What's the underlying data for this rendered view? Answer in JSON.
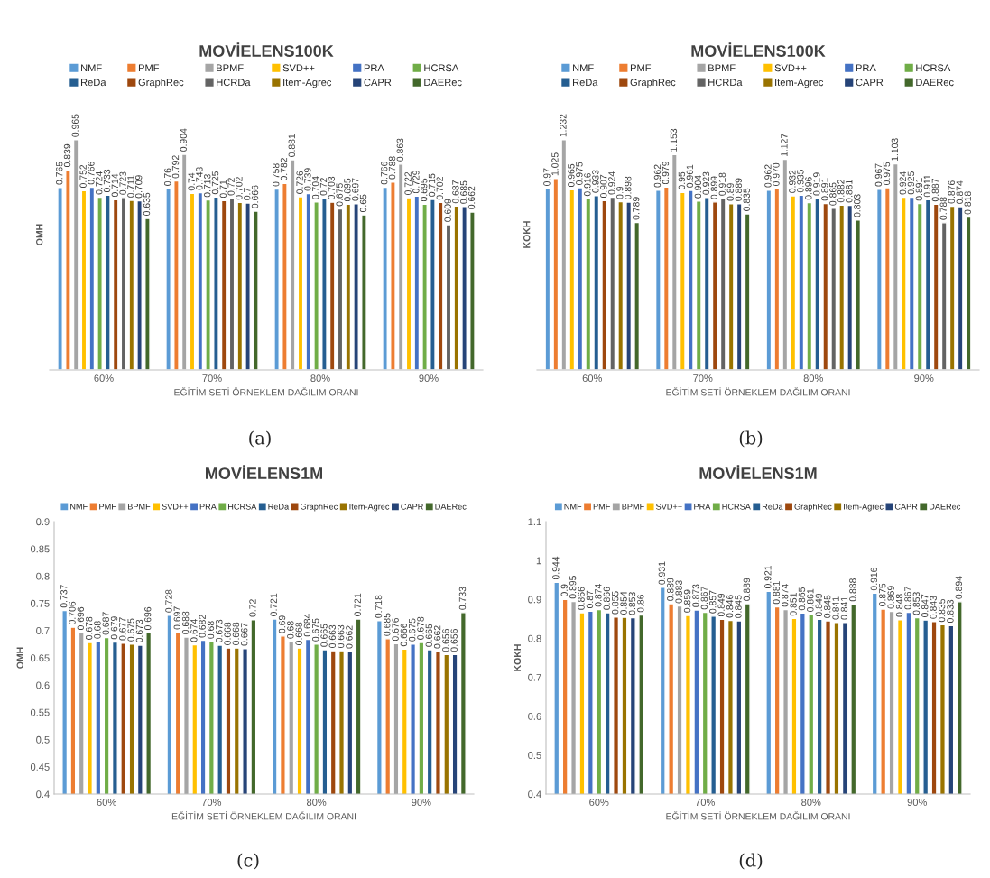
{
  "chart_data": [
    {
      "type": "bar",
      "title": "MOVİELENS100K",
      "xlabel": "EĞİTİM SETİ ÖRNEKLEM DAĞILIM ORANI",
      "ylabel": "OMH",
      "categories": [
        "60%",
        "70%",
        "80%",
        "90%"
      ],
      "legend": "top",
      "tick_labels": "x",
      "data_labels": true,
      "annotations": [
        "(a)"
      ],
      "series": [
        {
          "name": "NMF",
          "color": "#5b9bd5",
          "values": [
            0.765,
            0.76,
            0.758,
            0.766
          ]
        },
        {
          "name": "PMF",
          "color": "#ed7d31",
          "values": [
            0.839,
            0.792,
            0.782,
            0.788
          ]
        },
        {
          "name": "BPMF",
          "color": "#a5a5a5",
          "values": [
            0.965,
            0.904,
            0.881,
            0.863
          ]
        },
        {
          "name": "SVD++",
          "color": "#ffc000",
          "values": [
            0.752,
            0.74,
            0.726,
            0.722
          ]
        },
        {
          "name": "PRA",
          "color": "#4472c4",
          "values": [
            0.766,
            0.743,
            0.739,
            0.729
          ]
        },
        {
          "name": "HCRSA",
          "color": "#70ad47",
          "values": [
            0.724,
            0.713,
            0.704,
            0.695
          ]
        },
        {
          "name": "ReDa",
          "color": "#255e91",
          "values": [
            0.733,
            0.725,
            0.72,
            0.715
          ]
        },
        {
          "name": "GraphRec",
          "color": "#9e480e",
          "values": [
            0.714,
            0.71,
            0.703,
            0.702
          ]
        },
        {
          "name": "HCRDa",
          "color": "#636363",
          "values": [
            0.723,
            0.72,
            0.675,
            0.609
          ]
        },
        {
          "name": "Item-Agrec",
          "color": "#997300",
          "values": [
            0.711,
            0.702,
            0.695,
            0.687
          ]
        },
        {
          "name": "CAPR",
          "color": "#264478",
          "values": [
            0.709,
            0.7,
            0.697,
            0.685
          ]
        },
        {
          "name": "DAERec",
          "color": "#43682b",
          "values": [
            0.635,
            0.666,
            0.65,
            0.662
          ]
        }
      ]
    },
    {
      "type": "bar",
      "title": "MOVİELENS100K",
      "xlabel": "EĞİTİM SETİ ÖRNEKLEM DAĞILIM ORANI",
      "ylabel": "KOKH",
      "categories": [
        "60%",
        "70%",
        "80%",
        "90%"
      ],
      "legend": "top",
      "tick_labels": "x",
      "annotations": [
        "(b)"
      ],
      "series": [
        {
          "name": "NMF",
          "color": "#5b9bd5",
          "values": [
            0.97,
            0.962,
            0.962,
            0.967
          ],
          "value_labels": [
            "0.97",
            "0.962",
            "0.962",
            "0.967"
          ]
        },
        {
          "name": "PMF",
          "color": "#ed7d31",
          "values": [
            1.025,
            0.979,
            0.97,
            0.975
          ],
          "value_labels": [
            "1.025",
            "0.979",
            "0.970",
            "0.975"
          ]
        },
        {
          "name": "BPMF",
          "color": "#a5a5a5",
          "values": [
            1.232,
            1.153,
            1.127,
            1.103
          ],
          "value_labels": [
            "1.232",
            "1.153",
            "1.127",
            "1.103"
          ]
        },
        {
          "name": "SVD++",
          "color": "#ffc000",
          "values": [
            0.965,
            0.95,
            0.932,
            0.924
          ],
          "value_labels": [
            "0.965",
            "0.95",
            "0.932",
            "0.924"
          ]
        },
        {
          "name": "PRA",
          "color": "#4472c4",
          "values": [
            0.975,
            0.961,
            0.935,
            0.925
          ],
          "value_labels": [
            "0.975",
            "0.961",
            "0.935",
            "0.925"
          ]
        },
        {
          "name": "HCRSA",
          "color": "#70ad47",
          "values": [
            0.916,
            0.904,
            0.896,
            0.891
          ],
          "value_labels": [
            "0.916",
            "0.904",
            "0.896",
            "0.891"
          ]
        },
        {
          "name": "ReDa",
          "color": "#255e91",
          "values": [
            0.933,
            0.923,
            0.919,
            0.911
          ],
          "value_labels": [
            "0.933",
            "0.923",
            "0.919",
            "0.911"
          ]
        },
        {
          "name": "GraphRec",
          "color": "#9e480e",
          "values": [
            0.907,
            0.899,
            0.891,
            0.887
          ],
          "value_labels": [
            "0.907",
            "0.899",
            "0.891",
            "0.887"
          ]
        },
        {
          "name": "HCRDa",
          "color": "#636363",
          "values": [
            0.924,
            0.918,
            0.865,
            0.788
          ],
          "value_labels": [
            "0.924",
            "0.918",
            "0.865",
            "0.788"
          ]
        },
        {
          "name": "Item-Agrec",
          "color": "#997300",
          "values": [
            0.9,
            0.89,
            0.882,
            0.876
          ],
          "value_labels": [
            "0.9",
            "0.89",
            "0.882",
            "0.876"
          ]
        },
        {
          "name": "CAPR",
          "color": "#264478",
          "values": [
            0.898,
            0.889,
            0.881,
            0.874
          ],
          "value_labels": [
            "0.898",
            "0.889",
            "0.881",
            "0.874"
          ]
        },
        {
          "name": "DAERec",
          "color": "#43682b",
          "values": [
            0.789,
            0.835,
            0.803,
            0.818
          ],
          "value_labels": [
            "0.789",
            "0.835",
            "0.803",
            "0.818"
          ]
        }
      ]
    },
    {
      "type": "bar",
      "title": "MOVİELENS1M",
      "xlabel": "EĞİTİM SETİ ÖRNEKLEM DAĞILIM ORANI",
      "ylabel": "OMH",
      "categories": [
        "60%",
        "70%",
        "80%",
        "90%"
      ],
      "legend": "top",
      "data_labels": true,
      "annotations": [
        "(c)"
      ],
      "ylim": [
        0.4,
        0.9
      ],
      "yticks": [
        0.4,
        0.45,
        0.5,
        0.55,
        0.6,
        0.65,
        0.7,
        0.75,
        0.8,
        0.85,
        0.9
      ],
      "series": [
        {
          "name": "NMF",
          "color": "#5b9bd5",
          "values": [
            0.737,
            0.728,
            0.721,
            0.718
          ]
        },
        {
          "name": "PMF",
          "color": "#ed7d31",
          "values": [
            0.706,
            0.697,
            0.69,
            0.685
          ]
        },
        {
          "name": "BPMF",
          "color": "#a5a5a5",
          "values": [
            0.696,
            0.688,
            0.68,
            0.676
          ]
        },
        {
          "name": "SVD++",
          "color": "#ffc000",
          "values": [
            0.678,
            0.674,
            0.668,
            0.666
          ]
        },
        {
          "name": "PRA",
          "color": "#4472c4",
          "values": [
            0.68,
            0.682,
            0.684,
            0.675
          ]
        },
        {
          "name": "HCRSA",
          "color": "#70ad47",
          "values": [
            0.687,
            0.68,
            0.675,
            0.678
          ]
        },
        {
          "name": "ReDa",
          "color": "#255e91",
          "values": [
            0.679,
            0.673,
            0.665,
            0.665
          ]
        },
        {
          "name": "GraphRec",
          "color": "#9e480e",
          "values": [
            0.677,
            0.668,
            0.663,
            0.662
          ]
        },
        {
          "name": "Item-Agrec",
          "color": "#997300",
          "values": [
            0.675,
            0.668,
            0.663,
            0.656
          ]
        },
        {
          "name": "CAPR",
          "color": "#264478",
          "values": [
            0.673,
            0.667,
            0.662,
            0.656
          ]
        },
        {
          "name": "DAERec",
          "color": "#43682b",
          "values": [
            0.696,
            0.72,
            0.721,
            0.733
          ]
        }
      ]
    },
    {
      "type": "bar",
      "title": "MOVİELENS1M",
      "xlabel": "EĞİTİM SETİ ÖRNEKLEM DAĞILIM ORANI",
      "ylabel": "KOKH",
      "categories": [
        "60%",
        "70%",
        "80%",
        "90%"
      ],
      "legend": "top",
      "data_labels": true,
      "annotations": [
        "(d)"
      ],
      "ylim": [
        0.4,
        1.1
      ],
      "yticks": [
        0.4,
        0.5,
        0.6,
        0.7,
        0.8,
        0.9,
        1,
        1.1
      ],
      "series": [
        {
          "name": "NMF",
          "color": "#5b9bd5",
          "values": [
            0.944,
            0.931,
            0.921,
            0.916
          ]
        },
        {
          "name": "PMF",
          "color": "#ed7d31",
          "values": [
            0.9,
            0.889,
            0.881,
            0.875
          ]
        },
        {
          "name": "BPMF",
          "color": "#a5a5a5",
          "values": [
            0.895,
            0.883,
            0.874,
            0.869
          ]
        },
        {
          "name": "SVD++",
          "color": "#ffc000",
          "values": [
            0.866,
            0.859,
            0.851,
            0.848
          ]
        },
        {
          "name": "PRA",
          "color": "#4472c4",
          "values": [
            0.87,
            0.873,
            0.865,
            0.867
          ]
        },
        {
          "name": "HCRSA",
          "color": "#70ad47",
          "values": [
            0.874,
            0.867,
            0.861,
            0.853
          ]
        },
        {
          "name": "ReDa",
          "color": "#255e91",
          "values": [
            0.866,
            0.857,
            0.849,
            0.847
          ]
        },
        {
          "name": "GraphRec",
          "color": "#9e480e",
          "values": [
            0.855,
            0.849,
            0.845,
            0.843
          ]
        },
        {
          "name": "Item-Agrec",
          "color": "#997300",
          "values": [
            0.854,
            0.846,
            0.841,
            0.835
          ]
        },
        {
          "name": "CAPR",
          "color": "#264478",
          "values": [
            0.853,
            0.845,
            0.841,
            0.833
          ]
        },
        {
          "name": "DAERec",
          "color": "#43682b",
          "values": [
            0.86,
            0.889,
            0.888,
            0.894
          ]
        }
      ]
    }
  ]
}
